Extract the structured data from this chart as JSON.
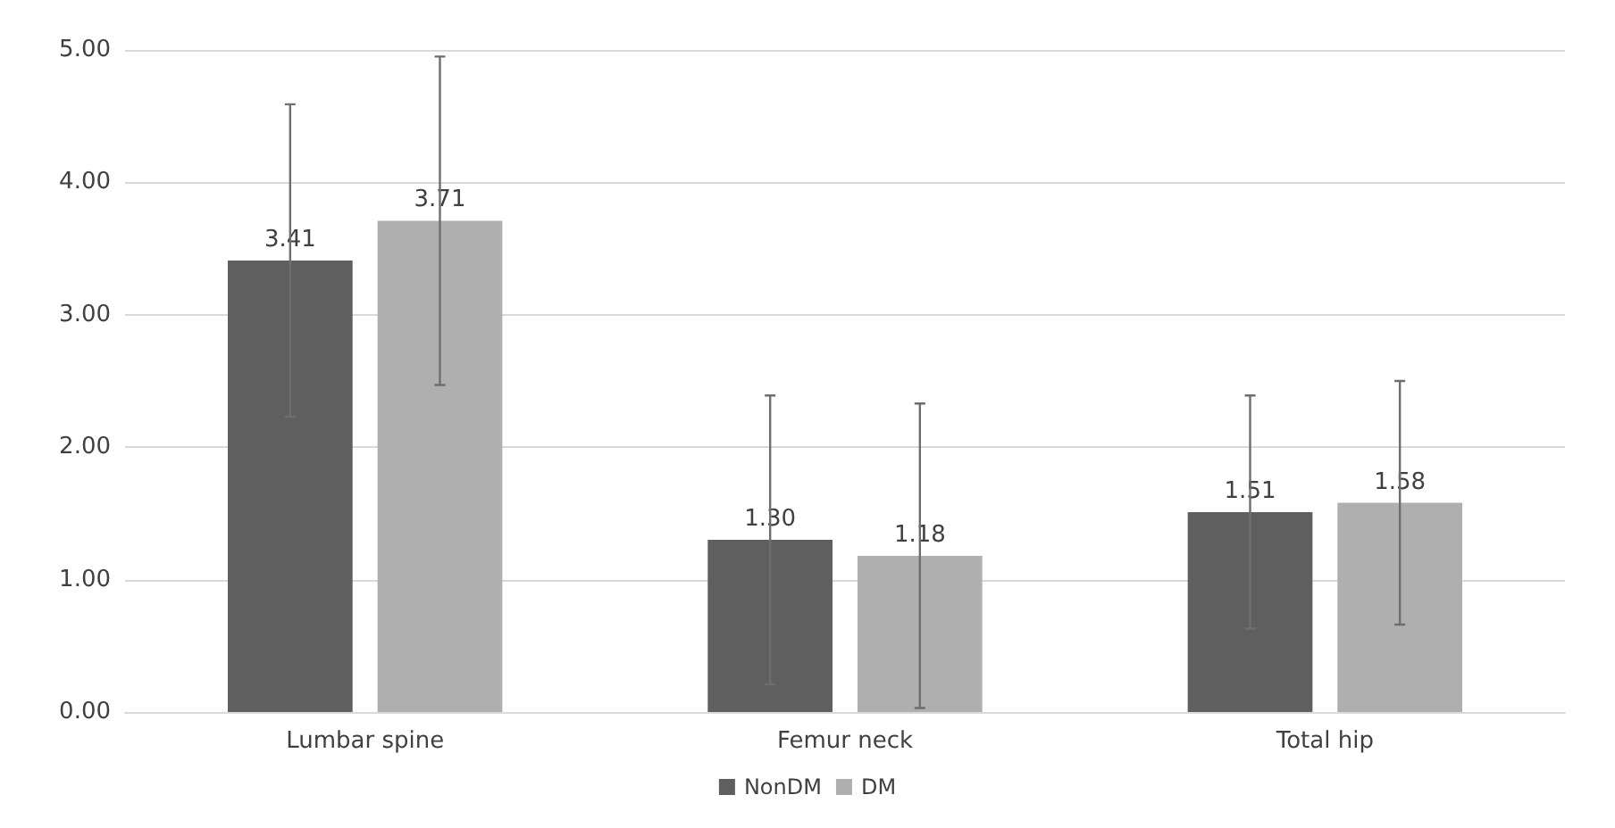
{
  "chart_data": {
    "type": "bar",
    "categories": [
      "Lumbar spine",
      "Femur neck",
      "Total hip"
    ],
    "series": [
      {
        "name": "NonDM",
        "color": "#5f5f5f",
        "values": [
          3.41,
          1.3,
          1.51
        ],
        "value_labels": [
          "3.41",
          "1.30",
          "1.51"
        ],
        "errors": [
          1.18,
          1.09,
          0.88
        ]
      },
      {
        "name": "DM",
        "color": "#afafaf",
        "values": [
          3.71,
          1.18,
          1.58
        ],
        "value_labels": [
          "3.71",
          "1.18",
          "1.58"
        ],
        "errors": [
          1.24,
          1.15,
          0.92
        ]
      }
    ],
    "ylim": [
      0,
      5
    ],
    "yticks": [
      {
        "value": 0,
        "label": "0.00"
      },
      {
        "value": 1,
        "label": "1.00"
      },
      {
        "value": 2,
        "label": "2.00"
      },
      {
        "value": 3,
        "label": "3.00"
      },
      {
        "value": 4,
        "label": "4.00"
      },
      {
        "value": 5,
        "label": "5.00"
      }
    ],
    "grid": "y",
    "legend": "bottom"
  }
}
